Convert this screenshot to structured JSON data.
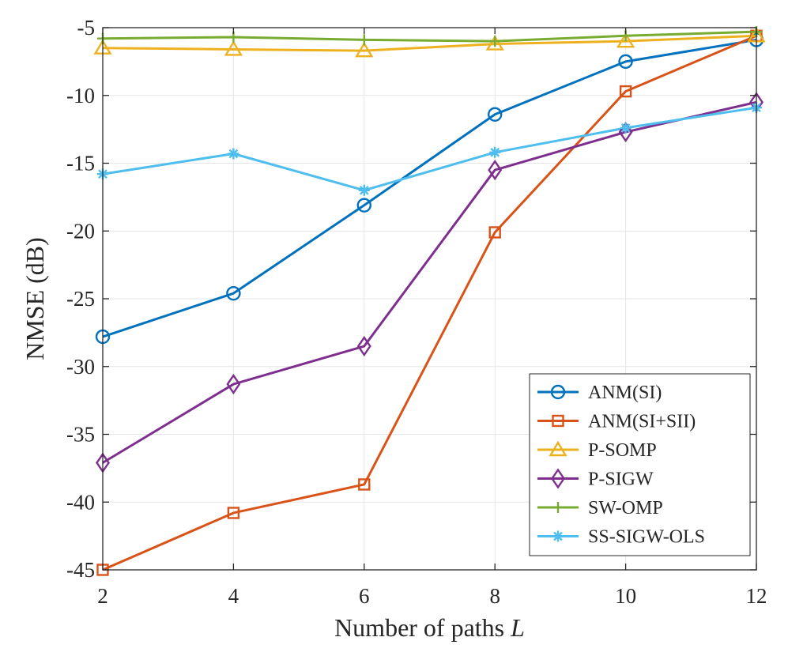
{
  "chart_data": {
    "type": "line",
    "title": "",
    "xlabel": "Number of paths",
    "xlabel_symbol": "L",
    "ylabel": "NMSE (dB)",
    "x": [
      2,
      4,
      6,
      8,
      10,
      12
    ],
    "xlim": [
      2,
      12
    ],
    "ylim": [
      -45,
      -5
    ],
    "xticks": [
      2,
      4,
      6,
      8,
      10,
      12
    ],
    "yticks": [
      -45,
      -40,
      -35,
      -30,
      -25,
      -20,
      -15,
      -10,
      -5
    ],
    "grid": true,
    "legend_position": "bottom-right",
    "series": [
      {
        "name": "ANM(SI)",
        "color": "#0072BD",
        "marker": "circle",
        "values": [
          -27.8,
          -24.6,
          -18.1,
          -11.4,
          -7.5,
          -5.9
        ]
      },
      {
        "name": "ANM(SI+SII)",
        "color": "#D95319",
        "marker": "square",
        "values": [
          -45.0,
          -40.8,
          -38.7,
          -20.1,
          -9.7,
          -5.6
        ]
      },
      {
        "name": "P-SOMP",
        "color": "#EDB120",
        "marker": "triangle",
        "values": [
          -6.5,
          -6.6,
          -6.7,
          -6.2,
          -6.0,
          -5.6
        ]
      },
      {
        "name": "P-SIGW",
        "color": "#7E2F8E",
        "marker": "diamond",
        "values": [
          -37.1,
          -31.3,
          -28.5,
          -15.5,
          -12.7,
          -10.5
        ]
      },
      {
        "name": "SW-OMP",
        "color": "#77AC30",
        "marker": "plus",
        "values": [
          -5.8,
          -5.7,
          -5.9,
          -6.0,
          -5.6,
          -5.3
        ]
      },
      {
        "name": "SS-SIGW-OLS",
        "color": "#4DBEEE",
        "marker": "asterisk",
        "values": [
          -15.8,
          -14.3,
          -17.0,
          -14.2,
          -12.4,
          -10.9
        ]
      }
    ]
  }
}
